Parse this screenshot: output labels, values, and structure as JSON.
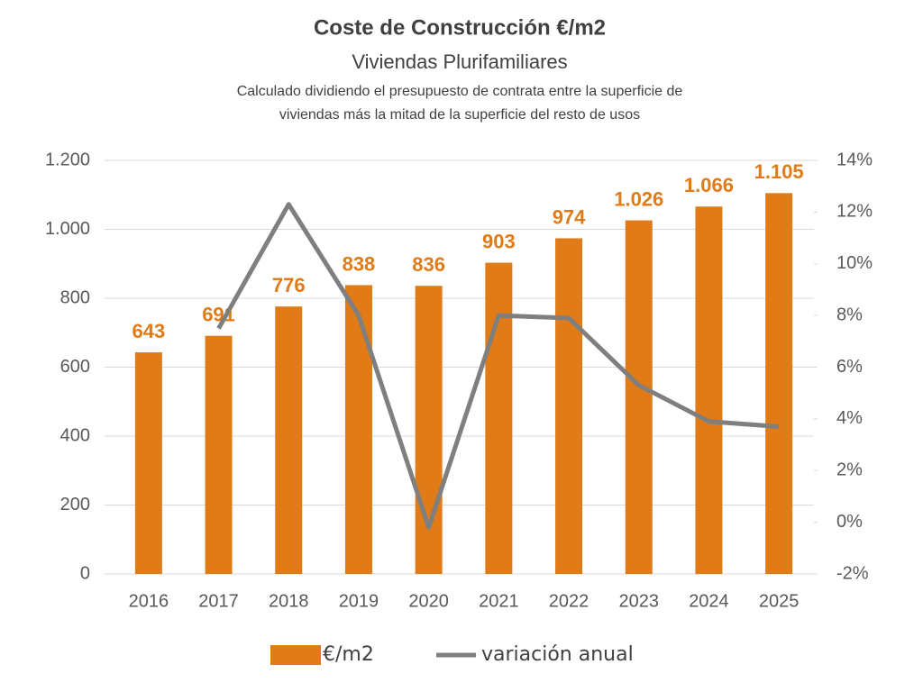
{
  "chart_data": {
    "type": "bar_line",
    "title": "Coste de Construcción €/m2",
    "subtitle": "Viviendas Plurifamiliares",
    "note": [
      "Calculado dividiendo el presupuesto de contrata entre la superficie de",
      "viviendas más la mitad de la superficie del resto de usos"
    ],
    "categories": [
      "2016",
      "2017",
      "2018",
      "2019",
      "2020",
      "2021",
      "2022",
      "2023",
      "2024",
      "2025"
    ],
    "series": [
      {
        "name": "€/m2",
        "type": "bar",
        "color": "#e07b17",
        "values": [
          643,
          691,
          776,
          838,
          836,
          903,
          974,
          1026,
          1066,
          1105
        ],
        "value_labels": [
          "643",
          "691",
          "776",
          "838",
          "836",
          "903",
          "974",
          "1.026",
          "1.066",
          "1.105"
        ]
      },
      {
        "name": "variación anual",
        "type": "line",
        "axis": "y2",
        "color": "#7f7f7f",
        "values": [
          null,
          7.5,
          12.3,
          8.0,
          -0.2,
          8.0,
          7.9,
          5.3,
          3.9,
          3.7
        ]
      }
    ],
    "ylim": [
      0,
      1200
    ],
    "yticks": [
      0,
      200,
      400,
      600,
      800,
      {
        "value": 1000,
        "label": "1.000"
      },
      {
        "value": 1200,
        "label": "1.200"
      }
    ],
    "y2lim": [
      -2,
      14
    ],
    "y2ticks": [
      {
        "value": -2,
        "label": "-2%"
      },
      {
        "value": 0,
        "label": "0%"
      },
      {
        "value": 2,
        "label": "2%"
      },
      {
        "value": 4,
        "label": "4%"
      },
      {
        "value": 6,
        "label": "6%"
      },
      {
        "value": 8,
        "label": "8%"
      },
      {
        "value": 10,
        "label": "10%"
      },
      {
        "value": 12,
        "label": "12%"
      },
      {
        "value": 14,
        "label": "14%"
      }
    ],
    "grid": true,
    "legend": "bottom"
  }
}
